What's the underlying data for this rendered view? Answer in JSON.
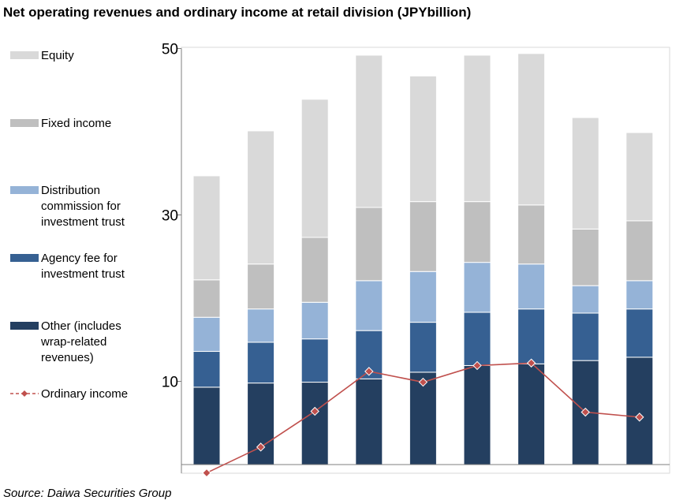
{
  "title": "Net operating revenues and ordinary income at retail division (JPYbillion)",
  "source": "Source: Daiwa Securities Group",
  "colors": {
    "equity": "#d9d9d9",
    "fixed_income": "#bfbfbf",
    "distribution": "#95b3d7",
    "agency": "#366092",
    "other": "#243f60",
    "ordinary_income": "#c0504d",
    "axis": "#7f7f7f",
    "grid": "#d9d9d9"
  },
  "chart_data": {
    "type": "bar",
    "stacked": true,
    "title": "Net operating revenues and ordinary income at retail division (JPYbillion)",
    "xlabel": "",
    "ylabel": "",
    "ylim": [
      0,
      50
    ],
    "yticks": [
      10,
      30,
      50
    ],
    "grid": false,
    "legend": "left",
    "categories": [
      "",
      "",
      "",
      "",
      "",
      "",
      "",
      "",
      ""
    ],
    "series": [
      {
        "name": "Other (includes wrap-related revenues)",
        "key": "other",
        "values": [
          9.3,
          9.8,
          9.9,
          10.3,
          11.1,
          11.9,
          12.1,
          12.5,
          12.9
        ]
      },
      {
        "name": "Agency fee for investment trust",
        "key": "agency",
        "values": [
          4.3,
          4.9,
          5.2,
          5.8,
          6.0,
          6.4,
          6.6,
          5.7,
          5.8
        ]
      },
      {
        "name": "Distribution commission for investment trust",
        "key": "distribution",
        "values": [
          4.1,
          4.0,
          4.4,
          6.0,
          6.1,
          6.0,
          5.4,
          3.3,
          3.4
        ]
      },
      {
        "name": "Fixed income",
        "key": "fixed_income",
        "values": [
          4.5,
          5.4,
          7.8,
          8.8,
          8.4,
          7.3,
          7.1,
          6.8,
          7.2
        ]
      },
      {
        "name": "Equity",
        "key": "equity",
        "values": [
          12.5,
          16.0,
          16.6,
          18.3,
          15.1,
          17.6,
          18.2,
          13.4,
          10.6
        ]
      }
    ],
    "line_series": {
      "name": "Ordinary income",
      "key": "ordinary_income",
      "values": [
        -1.0,
        2.1,
        6.4,
        11.2,
        9.9,
        11.9,
        12.2,
        6.3,
        5.7
      ]
    }
  },
  "legend": [
    {
      "key": "equity",
      "lines": [
        "Equity"
      ],
      "type": "box"
    },
    {
      "key": "fixed_income",
      "lines": [
        "Fixed income"
      ],
      "type": "box"
    },
    {
      "key": "distribution",
      "lines": [
        "Distribution",
        "commission for",
        "investment trust"
      ],
      "type": "box"
    },
    {
      "key": "agency",
      "lines": [
        "Agency fee for",
        "investment trust"
      ],
      "type": "box"
    },
    {
      "key": "other",
      "lines": [
        "Other (includes",
        "wrap-related",
        "revenues)"
      ],
      "type": "box"
    },
    {
      "key": "ordinary_income",
      "lines": [
        "Ordinary income"
      ],
      "type": "line"
    }
  ]
}
